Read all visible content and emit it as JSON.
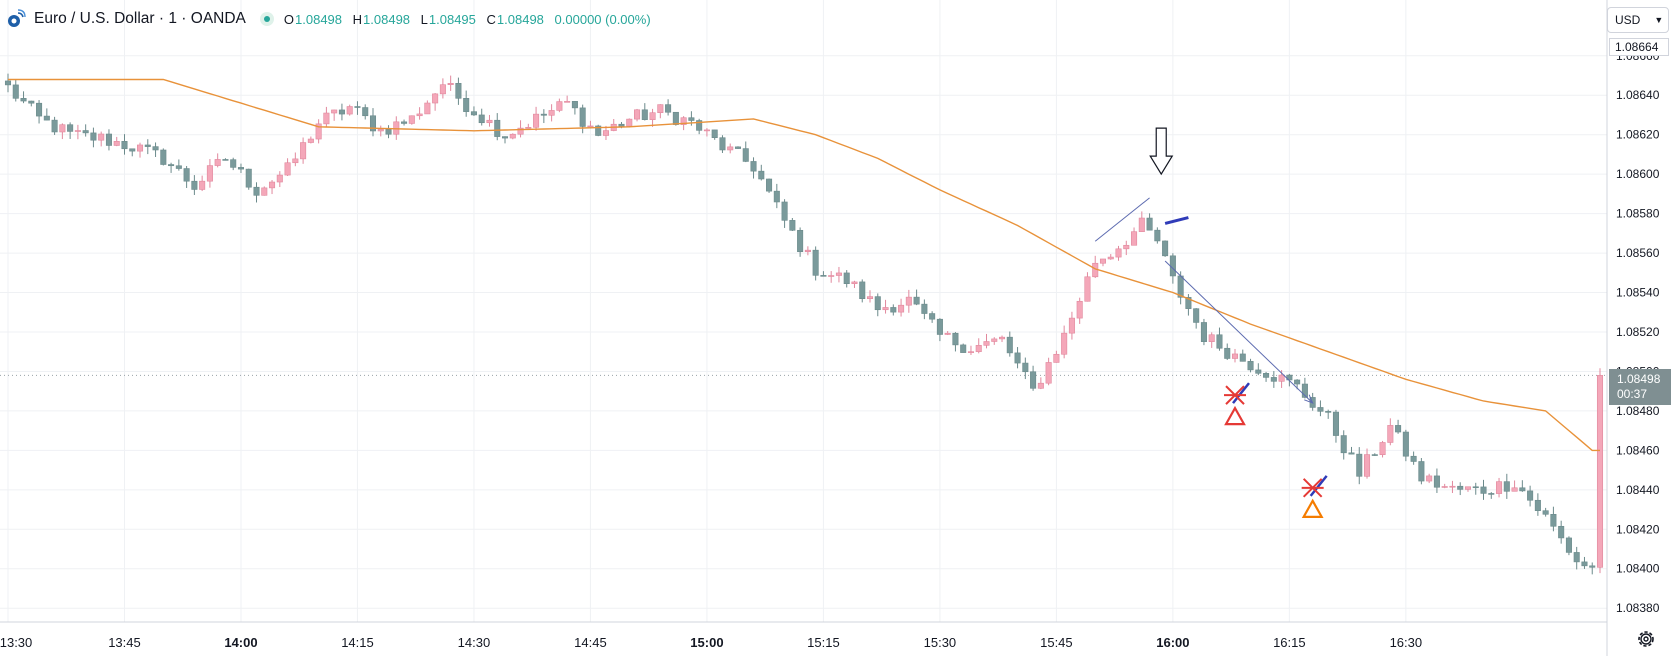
{
  "header": {
    "symbol": "Euro / U.S. Dollar · 1 · OANDA",
    "open_label": "O",
    "open": "1.08498",
    "high_label": "H",
    "high": "1.08498",
    "low_label": "L",
    "low": "1.08495",
    "close_label": "C",
    "close": "1.08498",
    "change": "0.00000 (0.00%)"
  },
  "currency_button": {
    "label": "USD",
    "icon": "chevron-down-icon"
  },
  "price_axis": {
    "top_value": "1.08664",
    "last_price": "1.08498",
    "countdown": "00:37"
  },
  "colors": {
    "up": "#f4a7b9",
    "up_border": "#e1889d",
    "down": "#7a9a9b",
    "down_border": "#6b8a8b",
    "ma": "#e8923a",
    "grid": "#eff1f4",
    "red_marker": "#e53935",
    "blue_marker": "#2f3bb8",
    "orange_marker": "#f57c00",
    "text": "#131722",
    "change_text": "#26a69a"
  },
  "chart_data": {
    "type": "candlestick",
    "symbol": "EUR/USD",
    "interval": "1 minute",
    "y_ticks": [
      1.0866,
      1.0864,
      1.0862,
      1.086,
      1.0858,
      1.0856,
      1.0854,
      1.0852,
      1.085,
      1.0848,
      1.0846,
      1.0844,
      1.0842,
      1.084,
      1.0838
    ],
    "y_tick_labels": [
      "1.08660",
      "1.08640",
      "1.08620",
      "1.08600",
      "1.08580",
      "1.08560",
      "1.08540",
      "1.08520",
      "1.08500",
      "1.08480",
      "1.08460",
      "1.08440",
      "1.08420",
      "1.08400",
      "1.08380"
    ],
    "x_ticks": [
      {
        "label": "13:30",
        "bold": false
      },
      {
        "label": "13:45",
        "bold": false
      },
      {
        "label": "14:00",
        "bold": true
      },
      {
        "label": "14:15",
        "bold": false
      },
      {
        "label": "14:30",
        "bold": false
      },
      {
        "label": "14:45",
        "bold": false
      },
      {
        "label": "15:00",
        "bold": true
      },
      {
        "label": "15:15",
        "bold": false
      },
      {
        "label": "15:30",
        "bold": false
      },
      {
        "label": "15:45",
        "bold": false
      },
      {
        "label": "16:00",
        "bold": true
      },
      {
        "label": "16:15",
        "bold": false
      },
      {
        "label": "16:30",
        "bold": false
      }
    ],
    "ylim": [
      1.08373,
      1.08668
    ],
    "last_price": 1.08498,
    "series": [
      {
        "type": "candlestick",
        "anchors": [
          [
            0,
            1.08644
          ],
          [
            4,
            1.08628
          ],
          [
            8,
            1.0862
          ],
          [
            12,
            1.08618
          ],
          [
            16,
            1.08614
          ],
          [
            20,
            1.08608
          ],
          [
            24,
            1.08594
          ],
          [
            28,
            1.08608
          ],
          [
            32,
            1.08592
          ],
          [
            36,
            1.08602
          ],
          [
            40,
            1.08626
          ],
          [
            44,
            1.08634
          ],
          [
            48,
            1.08622
          ],
          [
            52,
            1.08628
          ],
          [
            56,
            1.08646
          ],
          [
            60,
            1.08632
          ],
          [
            64,
            1.0862
          ],
          [
            68,
            1.08628
          ],
          [
            72,
            1.08636
          ],
          [
            76,
            1.0862
          ],
          [
            80,
            1.08628
          ],
          [
            84,
            1.08632
          ],
          [
            88,
            1.08626
          ],
          [
            92,
            1.08614
          ],
          [
            96,
            1.08604
          ],
          [
            100,
            1.08576
          ],
          [
            104,
            1.08552
          ],
          [
            108,
            1.08546
          ],
          [
            112,
            1.08532
          ],
          [
            116,
            1.08536
          ],
          [
            120,
            1.08518
          ],
          [
            124,
            1.08512
          ],
          [
            128,
            1.08516
          ],
          [
            132,
            1.0849
          ],
          [
            136,
            1.08518
          ],
          [
            140,
            1.08556
          ],
          [
            142,
            1.0856
          ],
          [
            146,
            1.08574
          ],
          [
            148,
            1.08566
          ],
          [
            150,
            1.08546
          ],
          [
            154,
            1.08518
          ],
          [
            158,
            1.08508
          ],
          [
            162,
            1.085
          ],
          [
            166,
            1.08492
          ],
          [
            170,
            1.08476
          ],
          [
            174,
            1.08448
          ],
          [
            178,
            1.08472
          ],
          [
            182,
            1.08446
          ],
          [
            186,
            1.0844
          ],
          [
            190,
            1.0844
          ],
          [
            194,
            1.08444
          ],
          [
            198,
            1.08426
          ],
          [
            202,
            1.08404
          ],
          [
            204,
            1.084
          ]
        ]
      },
      {
        "type": "line",
        "name": "",
        "color": "#e8923a",
        "anchors": [
          [
            0,
            1.08648
          ],
          [
            20,
            1.08648
          ],
          [
            40,
            1.08624
          ],
          [
            60,
            1.08622
          ],
          [
            80,
            1.08624
          ],
          [
            96,
            1.08628
          ],
          [
            104,
            1.0862
          ],
          [
            112,
            1.08608
          ],
          [
            120,
            1.08592
          ],
          [
            130,
            1.08574
          ],
          [
            140,
            1.08552
          ],
          [
            150,
            1.0854
          ],
          [
            160,
            1.08524
          ],
          [
            170,
            1.0851
          ],
          [
            180,
            1.08496
          ],
          [
            190,
            1.08485
          ],
          [
            198,
            1.0848
          ],
          [
            204,
            1.0846
          ]
        ]
      }
    ],
    "annotations": [
      {
        "type": "arrow-down",
        "x_index": 148.5,
        "y": 1.08598
      },
      {
        "type": "trendline",
        "from": [
          140,
          1.08566
        ],
        "to": [
          147,
          1.08588
        ]
      },
      {
        "type": "arrow",
        "from": [
          149,
          1.08556
        ],
        "to": [
          168,
          1.08484
        ]
      },
      {
        "type": "short-line",
        "from": [
          149,
          1.08575
        ],
        "to": [
          152,
          1.08578
        ],
        "color": "#2f3bb8"
      },
      {
        "type": "cross-triangle",
        "x_index": 158,
        "y": 1.08488,
        "cross_color": "#e53935",
        "triangle_color": "#e53935"
      },
      {
        "type": "cross-triangle",
        "x_index": 168,
        "y": 1.08441,
        "cross_color": "#e53935",
        "triangle_color": "#f57c00"
      }
    ]
  }
}
